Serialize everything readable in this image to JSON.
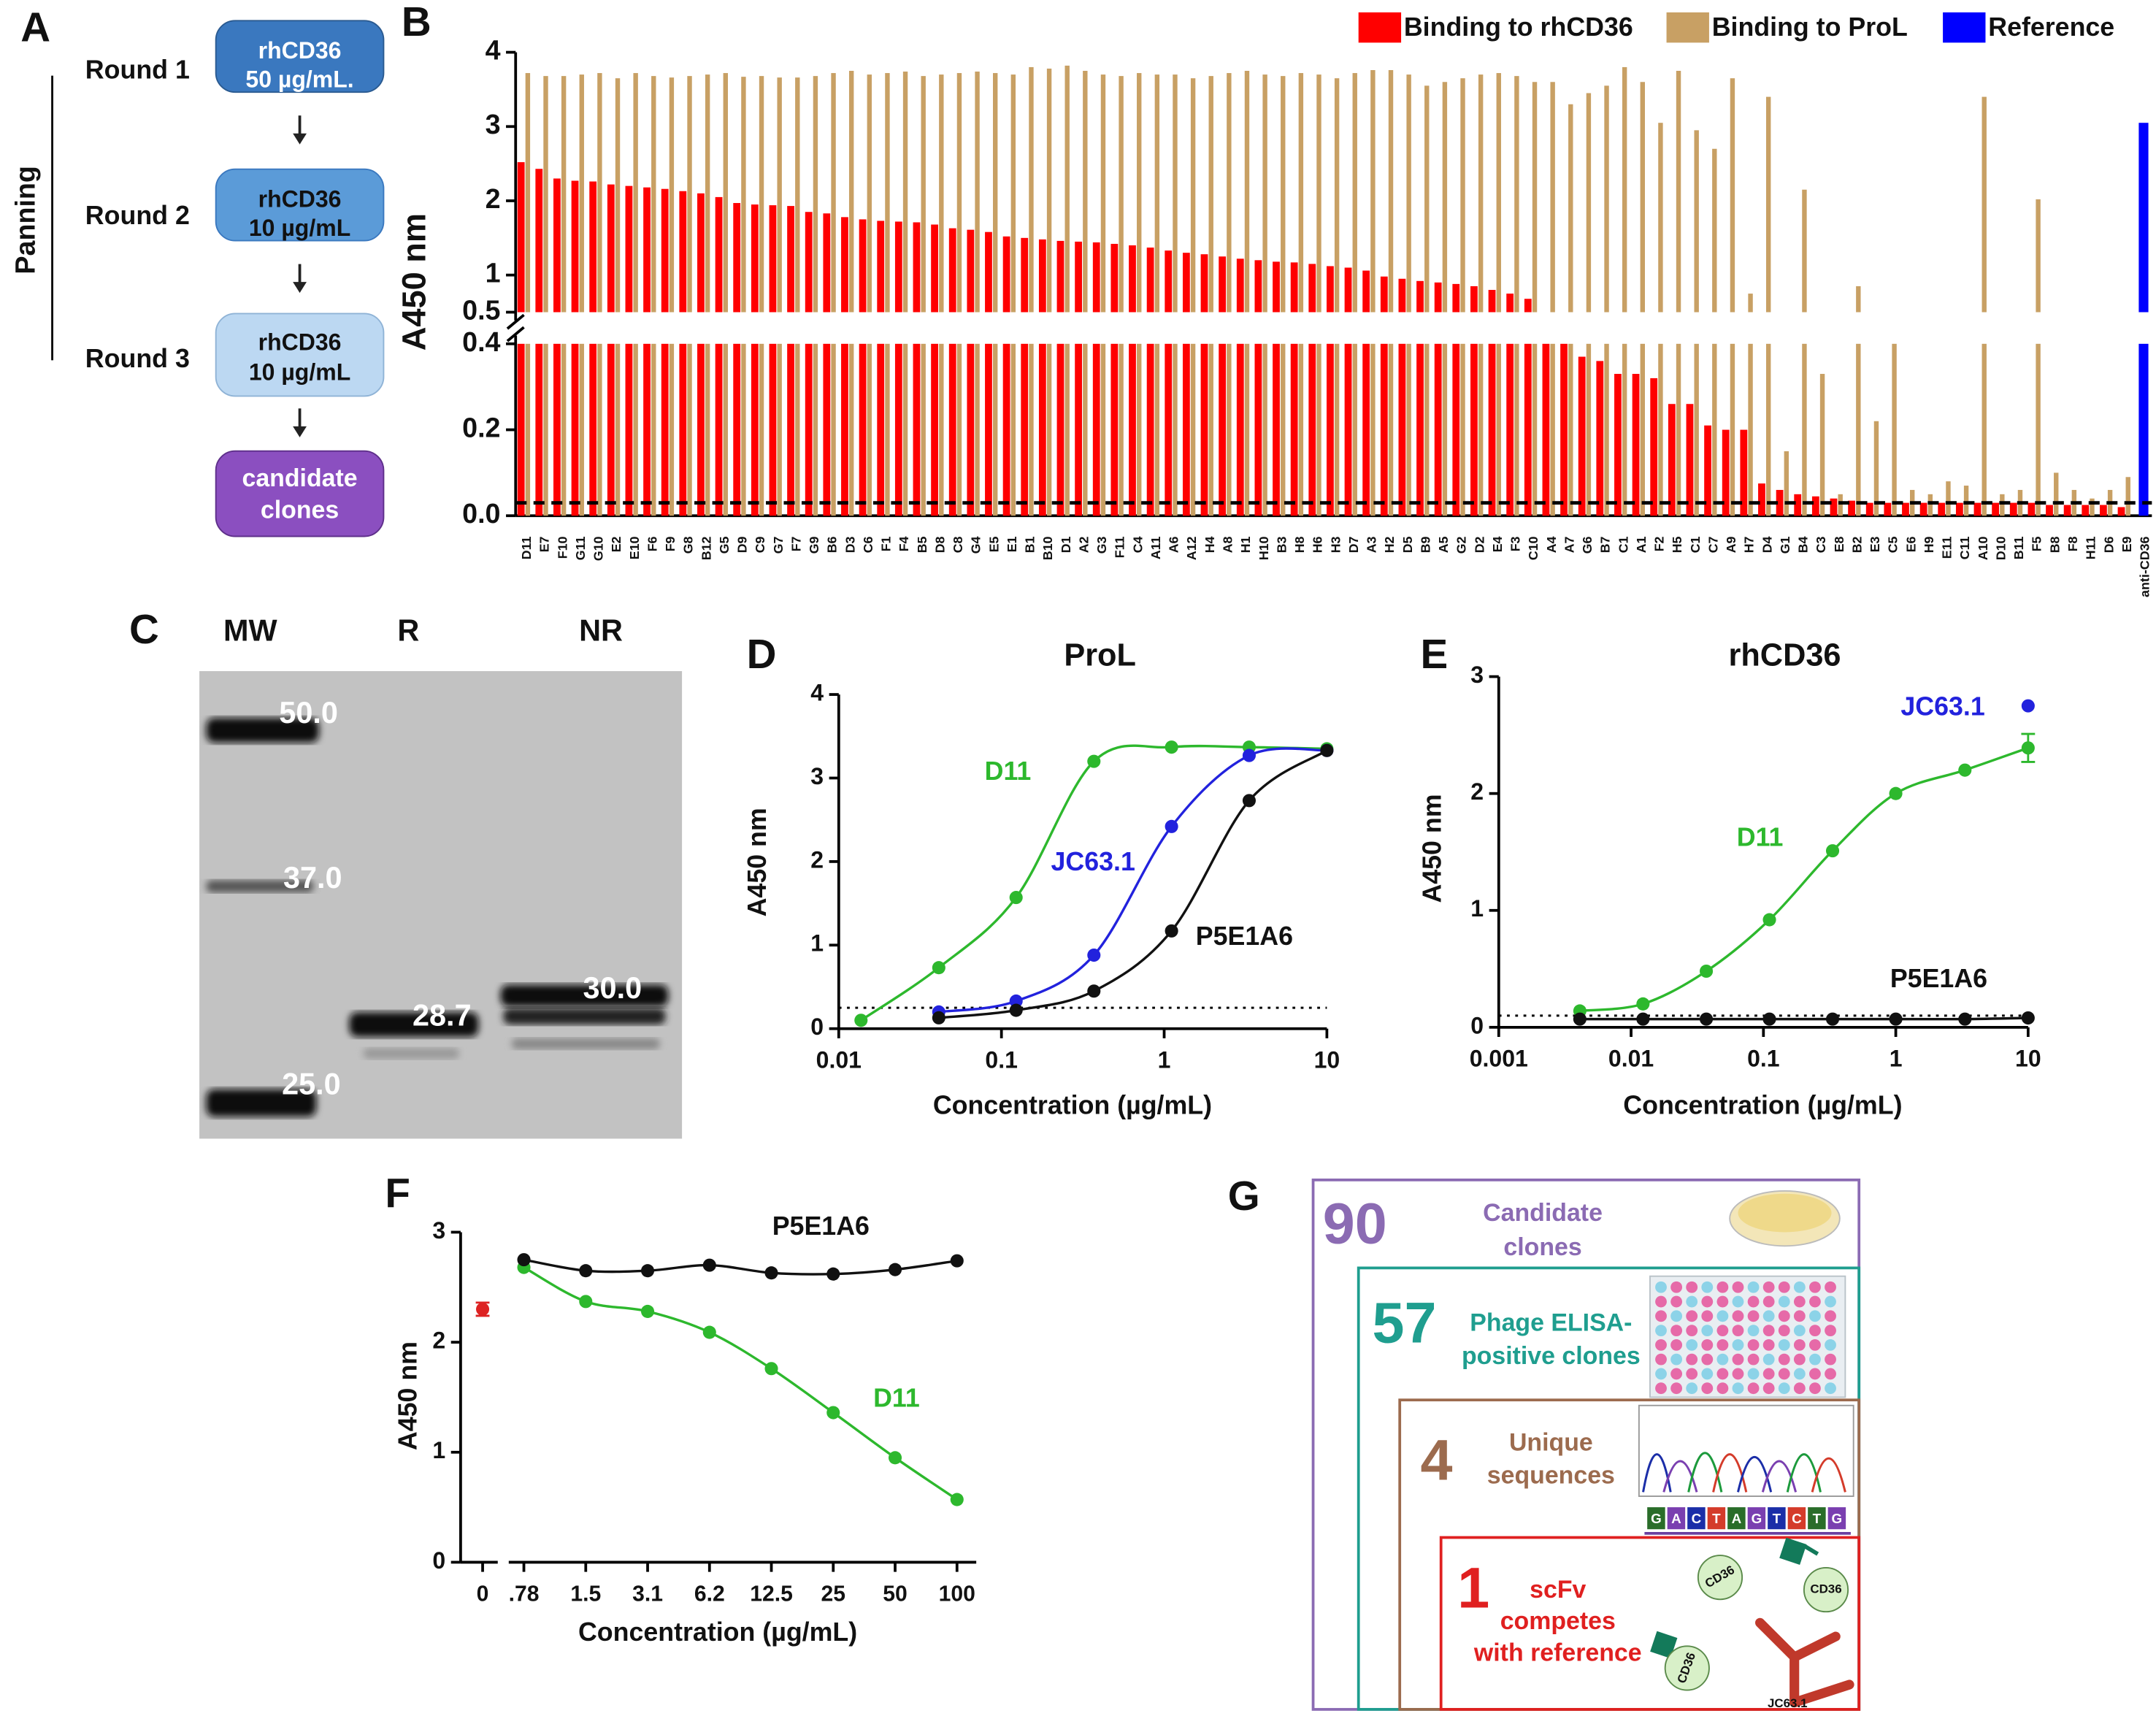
{
  "panel_letters": [
    "A",
    "B",
    "C",
    "D",
    "E",
    "F",
    "G"
  ],
  "flowchart": {
    "side_label": "Panning",
    "rounds": [
      "Round 1",
      "Round 2",
      "Round 3"
    ],
    "boxes": [
      {
        "lines": [
          "rhCD36",
          "50 µg/mL."
        ]
      },
      {
        "lines": [
          "rhCD36",
          "10 µg/mL"
        ]
      },
      {
        "lines": [
          "rhCD36",
          "10 µg/mL"
        ]
      },
      {
        "lines": [
          "candidate",
          "clones"
        ]
      }
    ]
  },
  "gel": {
    "lanes": [
      "MW",
      "R",
      "NR"
    ],
    "markers": [
      "50.0",
      "37.0",
      "25.0"
    ],
    "band_labels": [
      "28.7",
      "30.0"
    ]
  },
  "summary": {
    "levels": [
      {
        "number": 90,
        "lines": [
          "Candidate",
          "clones"
        ]
      },
      {
        "number": 57,
        "lines": [
          "Phage ELISA-",
          "positive clones"
        ]
      },
      {
        "number": 4,
        "lines": [
          "Unique",
          "sequences"
        ]
      },
      {
        "number": 1,
        "lines": [
          "scFv",
          "competes",
          "with reference"
        ]
      }
    ],
    "icon_labels": [
      "CD36",
      "CD36",
      "CD36",
      "JC63.1"
    ],
    "sequence": [
      "G",
      "A",
      "C",
      "T",
      "A",
      "G",
      "T",
      "C",
      "T",
      "G"
    ]
  },
  "chart_data": [
    {
      "type": "bar",
      "y_label": "A450 nm",
      "categories": [
        "D11",
        "E7",
        "F10",
        "G11",
        "G10",
        "E2",
        "E10",
        "F6",
        "F9",
        "G8",
        "B12",
        "G5",
        "D9",
        "C9",
        "G7",
        "F7",
        "G9",
        "B6",
        "D3",
        "C6",
        "F1",
        "F4",
        "B5",
        "D8",
        "C8",
        "G4",
        "E5",
        "E1",
        "B1",
        "B10",
        "D1",
        "A2",
        "G3",
        "F11",
        "C4",
        "A11",
        "A6",
        "A12",
        "H4",
        "A8",
        "H1",
        "H10",
        "B3",
        "H8",
        "H6",
        "H3",
        "D7",
        "A3",
        "H2",
        "D5",
        "B9",
        "A5",
        "G2",
        "D2",
        "E4",
        "F3",
        "C10",
        "A4",
        "A7",
        "G6",
        "B7",
        "C1",
        "A1",
        "F2",
        "H5",
        "C1",
        "C7",
        "A9",
        "H7",
        "D4",
        "G1",
        "B4",
        "C3",
        "E8",
        "B2",
        "E3",
        "C5",
        "E6",
        "H9",
        "E11",
        "C11",
        "A10",
        "D10",
        "B11",
        "F5",
        "B8",
        "F8",
        "H11",
        "D6",
        "E9",
        "anti-CD36"
      ],
      "series": [
        {
          "name": "Binding to rhCD36",
          "color": "#ff0000",
          "values": [
            2.52,
            2.43,
            2.3,
            2.27,
            2.26,
            2.22,
            2.2,
            2.18,
            2.16,
            2.13,
            2.1,
            2.05,
            1.97,
            1.95,
            1.94,
            1.93,
            1.85,
            1.83,
            1.78,
            1.75,
            1.73,
            1.72,
            1.71,
            1.68,
            1.63,
            1.61,
            1.58,
            1.52,
            1.5,
            1.48,
            1.46,
            1.45,
            1.44,
            1.42,
            1.4,
            1.37,
            1.33,
            1.3,
            1.28,
            1.25,
            1.22,
            1.2,
            1.18,
            1.17,
            1.15,
            1.12,
            1.1,
            1.06,
            0.98,
            0.95,
            0.92,
            0.9,
            0.88,
            0.85,
            0.8,
            0.75,
            0.68,
            0.45,
            0.41,
            0.37,
            0.36,
            0.33,
            0.33,
            0.32,
            0.26,
            0.26,
            0.21,
            0.2,
            0.2,
            0.075,
            0.06,
            0.05,
            0.045,
            0.04,
            0.035,
            0.03,
            0.03,
            0.03,
            0.03,
            0.03,
            0.03,
            0.03,
            0.03,
            0.03,
            0.03,
            0.025,
            0.025,
            0.025,
            0.025,
            0.02,
            null
          ]
        },
        {
          "name": "Binding to ProL",
          "color": "#c8a064",
          "values": [
            3.72,
            3.68,
            3.68,
            3.7,
            3.72,
            3.65,
            3.72,
            3.68,
            3.66,
            3.68,
            3.7,
            3.72,
            3.67,
            3.68,
            3.66,
            3.66,
            3.68,
            3.72,
            3.75,
            3.7,
            3.72,
            3.74,
            3.68,
            3.7,
            3.72,
            3.74,
            3.72,
            3.7,
            3.8,
            3.78,
            3.82,
            3.75,
            3.7,
            3.68,
            3.72,
            3.7,
            3.7,
            3.65,
            3.68,
            3.72,
            3.75,
            3.7,
            3.68,
            3.72,
            3.7,
            3.65,
            3.72,
            3.76,
            3.76,
            3.7,
            3.55,
            3.6,
            3.65,
            3.7,
            3.72,
            3.68,
            3.6,
            3.6,
            3.3,
            3.45,
            3.55,
            3.8,
            3.6,
            3.05,
            3.75,
            2.95,
            2.7,
            3.65,
            0.75,
            3.4,
            0.15,
            2.15,
            0.33,
            0.05,
            0.85,
            0.22,
            0.4,
            0.06,
            0.05,
            0.08,
            0.07,
            3.4,
            0.05,
            0.06,
            2.02,
            0.1,
            0.06,
            0.04,
            0.06,
            0.09,
            null
          ]
        },
        {
          "name": "Reference",
          "color": "#0000ff",
          "values": [
            null,
            null,
            null,
            null,
            null,
            null,
            null,
            null,
            null,
            null,
            null,
            null,
            null,
            null,
            null,
            null,
            null,
            null,
            null,
            null,
            null,
            null,
            null,
            null,
            null,
            null,
            null,
            null,
            null,
            null,
            null,
            null,
            null,
            null,
            null,
            null,
            null,
            null,
            null,
            null,
            null,
            null,
            null,
            null,
            null,
            null,
            null,
            null,
            null,
            null,
            null,
            null,
            null,
            null,
            null,
            null,
            null,
            null,
            null,
            null,
            null,
            null,
            null,
            null,
            null,
            null,
            null,
            null,
            null,
            null,
            null,
            null,
            null,
            null,
            null,
            null,
            null,
            null,
            null,
            null,
            null,
            null,
            null,
            null,
            null,
            null,
            null,
            null,
            null,
            null,
            3.05
          ]
        }
      ],
      "ylim": [
        0,
        4
      ],
      "axis_break": [
        0.4,
        0.5
      ],
      "yticks": [
        {
          "value": 0,
          "label": "0.0"
        },
        0.2,
        0.4,
        0.5,
        1,
        2,
        3,
        4
      ],
      "threshold": 0.03
    },
    {
      "type": "line",
      "title": "ProL",
      "x_label": "Concentration (µg/mL)",
      "y_label": "A450 nm",
      "log_x": true,
      "xlim": [
        0.01,
        10
      ],
      "xticks": [
        0.01,
        0.1,
        1,
        10
      ],
      "ylim": [
        0,
        4
      ],
      "yticks": [
        0,
        1,
        2,
        3,
        4
      ],
      "reference_line": 0.25,
      "series": [
        {
          "name": "D11",
          "color": "#2db82d",
          "x": [
            0.0137,
            0.0412,
            0.123,
            0.37,
            1.11,
            3.33,
            10
          ],
          "values": [
            0.1,
            0.73,
            1.57,
            3.2,
            3.37,
            3.37,
            3.35
          ]
        },
        {
          "name": "JC63.1",
          "color": "#2222dd",
          "x": [
            0.0412,
            0.123,
            0.37,
            1.11,
            3.33,
            10
          ],
          "values": [
            0.2,
            0.33,
            0.88,
            2.42,
            3.27,
            3.33
          ]
        },
        {
          "name": "P5E1A6",
          "color": "#111111",
          "x": [
            0.0412,
            0.123,
            0.37,
            1.11,
            3.33,
            10
          ],
          "values": [
            0.13,
            0.22,
            0.45,
            1.17,
            2.73,
            3.33
          ]
        }
      ]
    },
    {
      "type": "line",
      "title": "rhCD36",
      "x_label": "Concentration (µg/mL)",
      "y_label": "A450 nm",
      "log_x": true,
      "xlim": [
        0.001,
        10
      ],
      "xticks": [
        0.001,
        0.01,
        0.1,
        1,
        10
      ],
      "ylim": [
        0,
        3
      ],
      "yticks": [
        0,
        1,
        2,
        3
      ],
      "reference_line": 0.1,
      "series": [
        {
          "name": "D11",
          "color": "#2db82d",
          "x": [
            0.0041,
            0.0123,
            0.037,
            0.111,
            0.333,
            1,
            3.33,
            10
          ],
          "values": [
            0.14,
            0.2,
            0.48,
            0.92,
            1.51,
            2.0,
            2.2,
            2.39
          ],
          "errors": [
            null,
            null,
            null,
            null,
            null,
            null,
            null,
            0.12
          ]
        },
        {
          "name": "JC63.1",
          "color": "#2222dd",
          "x": [
            10
          ],
          "values": [
            2.75
          ],
          "line": false
        },
        {
          "name": "P5E1A6",
          "color": "#111111",
          "x": [
            0.0041,
            0.0123,
            0.037,
            0.111,
            0.333,
            1,
            3.33,
            10
          ],
          "values": [
            0.07,
            0.07,
            0.07,
            0.07,
            0.07,
            0.07,
            0.07,
            0.08
          ]
        }
      ]
    },
    {
      "type": "line",
      "x_label": "Concentration (µg/mL)",
      "y_label": "A450 nm",
      "categories": [
        "0",
        ".78",
        "1.5",
        "3.1",
        "6.2",
        "12.5",
        "25",
        "50",
        "100"
      ],
      "ylim": [
        0,
        3
      ],
      "yticks": [
        0,
        1,
        2,
        3
      ],
      "series": [
        {
          "color": "#dd2222",
          "values": [
            2.3,
            null,
            null,
            null,
            null,
            null,
            null,
            null,
            null
          ],
          "errors": [
            0.06,
            null,
            null,
            null,
            null,
            null,
            null,
            null,
            null
          ],
          "line": false
        },
        {
          "name": "D11",
          "color": "#2db82d",
          "values": [
            null,
            2.68,
            2.37,
            2.28,
            2.09,
            1.76,
            1.36,
            0.95,
            0.57
          ]
        },
        {
          "name": "P5E1A6",
          "color": "#111111",
          "values": [
            null,
            2.75,
            2.65,
            2.65,
            2.7,
            2.63,
            2.62,
            2.66,
            2.74
          ]
        }
      ]
    }
  ]
}
